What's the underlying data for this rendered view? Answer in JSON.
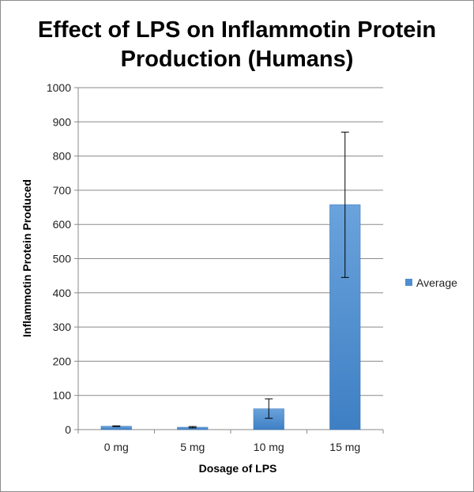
{
  "chart_data": {
    "type": "bar",
    "title_lines": [
      "Effect of LPS on Inflammotin Protein",
      "Production (Humans)"
    ],
    "xlabel": "Dosage of LPS",
    "ylabel": "Inflammotin Protein Produced",
    "categories": [
      "0 mg",
      "5 mg",
      "10 mg",
      "15 mg"
    ],
    "series": [
      {
        "name": "Average",
        "color": "#4f8fd1",
        "values": [
          10,
          7,
          61,
          658
        ],
        "error_low": [
          9,
          5,
          33,
          445
        ],
        "error_high": [
          11,
          9,
          90,
          870
        ]
      }
    ],
    "ylim": [
      0,
      1000
    ],
    "yticks": [
      0,
      100,
      200,
      300,
      400,
      500,
      600,
      700,
      800,
      900,
      1000
    ],
    "grid": true,
    "legend_position": "right"
  }
}
